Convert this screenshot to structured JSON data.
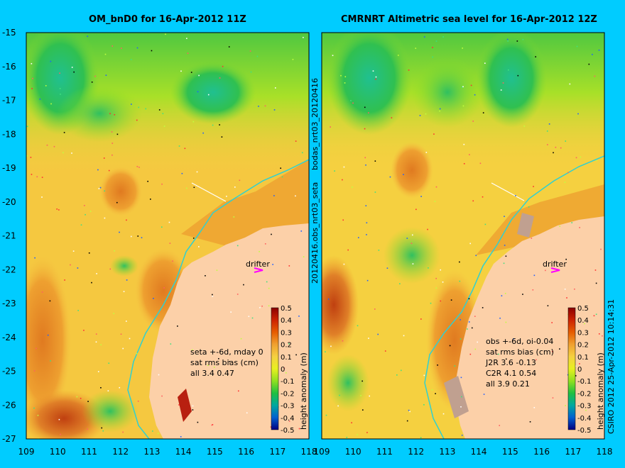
{
  "left_panel": {
    "title": "OM_bnD0 for 16-Apr-2012 11Z",
    "stats": [
      "seta +-6d, mday 0",
      "sat rms bias (cm)",
      "all 3.4 0.47"
    ],
    "drifter_label": "drifter"
  },
  "right_panel": {
    "title": "CMRNRT Altimetric sea level  for 16-Apr-2012 12Z",
    "stats": [
      "obs +-6d, oi-0.04",
      "sat rms bias (cm)",
      "J2R   3.6 -0.13",
      "C2R   4.1 0.54",
      "all 3.9 0.21"
    ],
    "drifter_label": "drifter"
  },
  "middle_label_top": "bodas_nrt03_20120416",
  "middle_label_bottom": "20120416.obs_nrt03_seta",
  "credit": "CSIRO 2012   25-Apr-2012 10:14:31",
  "axes": {
    "lon_ticks": [
      "109",
      "110",
      "111",
      "112",
      "113",
      "114",
      "115",
      "116",
      "117",
      "118"
    ],
    "lat_ticks": [
      "-15",
      "-16",
      "-17",
      "-18",
      "-19",
      "-20",
      "-21",
      "-22",
      "-23",
      "-24",
      "-25",
      "-26",
      "-27"
    ],
    "lon_range": [
      109,
      118
    ],
    "lat_range": [
      -27,
      -15
    ]
  },
  "colorbar": {
    "label": "height anomaly (m)",
    "ticks": [
      "0.5",
      "0.4",
      "0.3",
      "0.2",
      "0.1",
      "0",
      "-0.1",
      "-0.2",
      "-0.3",
      "-0.4",
      "-0.5"
    ],
    "colors": [
      "#8b0000",
      "#cc2200",
      "#e65c00",
      "#f0a030",
      "#f5d040",
      "#e8f020",
      "#90e020",
      "#20c040",
      "#00a8a0",
      "#0060d0",
      "#000080"
    ]
  },
  "colors": {
    "background": "#00ccff",
    "land": "#fcd0a8",
    "coast_current": "#30d0d0",
    "drifter_marker": "#ff00ff"
  }
}
